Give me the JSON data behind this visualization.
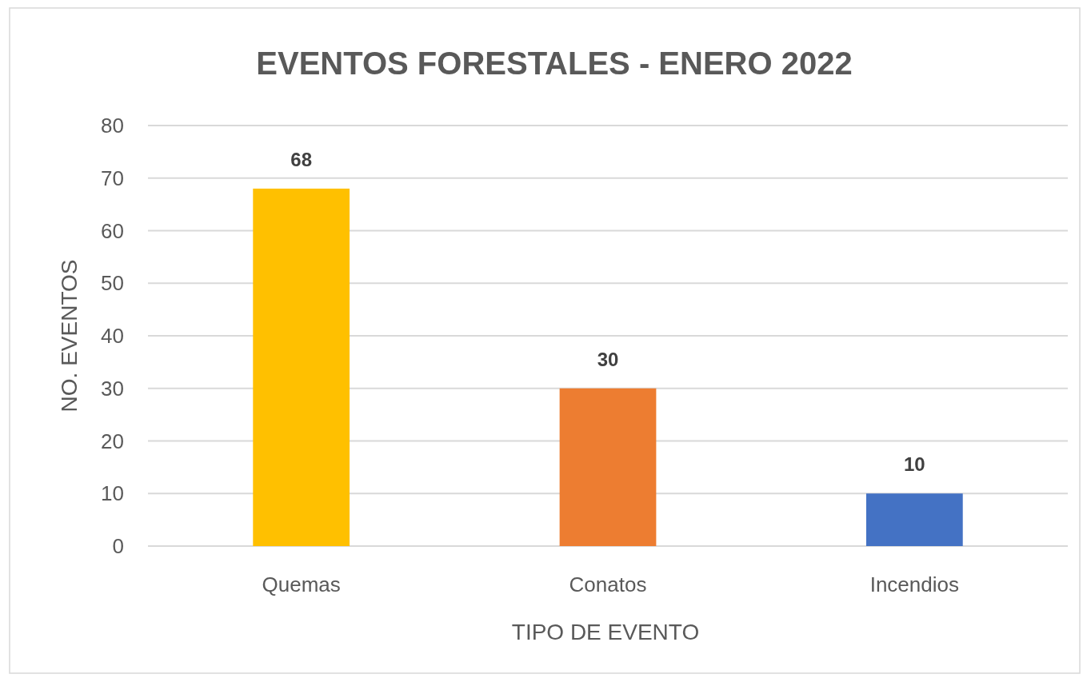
{
  "chart_data": {
    "type": "bar",
    "title": "EVENTOS FORESTALES - ENERO 2022",
    "xlabel": "TIPO DE EVENTO",
    "ylabel": "NO. EVENTOS",
    "categories": [
      "Quemas",
      "Conatos",
      "Incendios"
    ],
    "values": [
      68,
      30,
      10
    ],
    "colors": [
      "#ffc000",
      "#ed7d31",
      "#4472c4"
    ],
    "ylim": [
      0,
      80
    ],
    "yticks": [
      0,
      10,
      20,
      30,
      40,
      50,
      60,
      70,
      80
    ],
    "grid": "y",
    "data_labels": true
  }
}
